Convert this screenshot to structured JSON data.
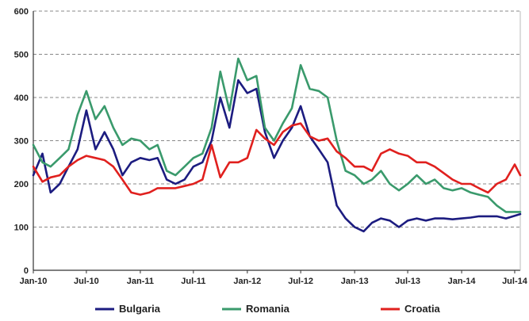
{
  "chart_data": {
    "type": "line",
    "title": "",
    "xlabel": "",
    "ylabel": "",
    "ylim": [
      0,
      600
    ],
    "yticks": [
      0,
      100,
      200,
      300,
      400,
      500,
      600
    ],
    "xlim": [
      "2010-01-01",
      "2014-07-20"
    ],
    "xticks": [
      {
        "date": "2010-01-01",
        "label": "Jan-10"
      },
      {
        "date": "2010-07-01",
        "label": "Jul-10"
      },
      {
        "date": "2011-01-01",
        "label": "Jan-11"
      },
      {
        "date": "2011-07-01",
        "label": "Jul-11"
      },
      {
        "date": "2012-01-01",
        "label": "Jan-12"
      },
      {
        "date": "2012-07-01",
        "label": "Jul-12"
      },
      {
        "date": "2013-01-01",
        "label": "Jan-13"
      },
      {
        "date": "2013-07-01",
        "label": "Jul-13"
      },
      {
        "date": "2014-01-01",
        "label": "Jan-14"
      },
      {
        "date": "2014-07-01",
        "label": "Jul-14"
      }
    ],
    "grid": "horizontal dashed",
    "legend_position": "bottom",
    "series": [
      {
        "name": "Bulgaria",
        "color": "#1c1c80",
        "points": [
          [
            "2010-01-01",
            220
          ],
          [
            "2010-02-01",
            270
          ],
          [
            "2010-03-01",
            180
          ],
          [
            "2010-04-01",
            200
          ],
          [
            "2010-05-01",
            240
          ],
          [
            "2010-06-01",
            280
          ],
          [
            "2010-07-01",
            370
          ],
          [
            "2010-08-01",
            280
          ],
          [
            "2010-09-01",
            320
          ],
          [
            "2010-10-01",
            280
          ],
          [
            "2010-11-01",
            220
          ],
          [
            "2010-12-01",
            250
          ],
          [
            "2011-01-01",
            260
          ],
          [
            "2011-02-01",
            255
          ],
          [
            "2011-03-01",
            260
          ],
          [
            "2011-04-01",
            210
          ],
          [
            "2011-05-01",
            200
          ],
          [
            "2011-06-01",
            210
          ],
          [
            "2011-07-01",
            240
          ],
          [
            "2011-08-01",
            250
          ],
          [
            "2011-09-01",
            300
          ],
          [
            "2011-10-01",
            400
          ],
          [
            "2011-11-01",
            330
          ],
          [
            "2011-12-01",
            440
          ],
          [
            "2012-01-01",
            410
          ],
          [
            "2012-02-01",
            420
          ],
          [
            "2012-03-01",
            320
          ],
          [
            "2012-04-01",
            260
          ],
          [
            "2012-05-01",
            300
          ],
          [
            "2012-06-01",
            330
          ],
          [
            "2012-07-01",
            380
          ],
          [
            "2012-08-01",
            310
          ],
          [
            "2012-09-01",
            280
          ],
          [
            "2012-10-01",
            250
          ],
          [
            "2012-11-01",
            150
          ],
          [
            "2012-12-01",
            120
          ],
          [
            "2013-01-01",
            100
          ],
          [
            "2013-02-01",
            90
          ],
          [
            "2013-03-01",
            110
          ],
          [
            "2013-04-01",
            120
          ],
          [
            "2013-05-01",
            115
          ],
          [
            "2013-06-01",
            100
          ],
          [
            "2013-07-01",
            115
          ],
          [
            "2013-08-01",
            120
          ],
          [
            "2013-09-01",
            115
          ],
          [
            "2013-10-01",
            120
          ],
          [
            "2013-11-01",
            120
          ],
          [
            "2013-12-01",
            118
          ],
          [
            "2014-01-01",
            120
          ],
          [
            "2014-02-01",
            122
          ],
          [
            "2014-03-01",
            125
          ],
          [
            "2014-04-01",
            125
          ],
          [
            "2014-05-01",
            125
          ],
          [
            "2014-06-01",
            120
          ],
          [
            "2014-07-20",
            130
          ]
        ]
      },
      {
        "name": "Romania",
        "color": "#3a9a6c",
        "points": [
          [
            "2010-01-01",
            290
          ],
          [
            "2010-02-01",
            250
          ],
          [
            "2010-03-01",
            240
          ],
          [
            "2010-04-01",
            260
          ],
          [
            "2010-05-01",
            280
          ],
          [
            "2010-06-01",
            360
          ],
          [
            "2010-07-01",
            415
          ],
          [
            "2010-08-01",
            350
          ],
          [
            "2010-09-01",
            380
          ],
          [
            "2010-10-01",
            330
          ],
          [
            "2010-11-01",
            290
          ],
          [
            "2010-12-01",
            305
          ],
          [
            "2011-01-01",
            300
          ],
          [
            "2011-02-01",
            280
          ],
          [
            "2011-03-01",
            290
          ],
          [
            "2011-04-01",
            230
          ],
          [
            "2011-05-01",
            220
          ],
          [
            "2011-06-01",
            240
          ],
          [
            "2011-07-01",
            260
          ],
          [
            "2011-08-01",
            270
          ],
          [
            "2011-09-01",
            330
          ],
          [
            "2011-10-01",
            460
          ],
          [
            "2011-11-01",
            370
          ],
          [
            "2011-12-01",
            490
          ],
          [
            "2012-01-01",
            440
          ],
          [
            "2012-02-01",
            450
          ],
          [
            "2012-03-01",
            330
          ],
          [
            "2012-04-01",
            300
          ],
          [
            "2012-05-01",
            340
          ],
          [
            "2012-06-01",
            375
          ],
          [
            "2012-07-01",
            475
          ],
          [
            "2012-08-01",
            420
          ],
          [
            "2012-09-01",
            415
          ],
          [
            "2012-10-01",
            400
          ],
          [
            "2012-11-01",
            300
          ],
          [
            "2012-12-01",
            230
          ],
          [
            "2013-01-01",
            220
          ],
          [
            "2013-02-01",
            200
          ],
          [
            "2013-03-01",
            210
          ],
          [
            "2013-04-01",
            230
          ],
          [
            "2013-05-01",
            200
          ],
          [
            "2013-06-01",
            185
          ],
          [
            "2013-07-01",
            200
          ],
          [
            "2013-08-01",
            220
          ],
          [
            "2013-09-01",
            200
          ],
          [
            "2013-10-01",
            210
          ],
          [
            "2013-11-01",
            190
          ],
          [
            "2013-12-01",
            185
          ],
          [
            "2014-01-01",
            190
          ],
          [
            "2014-02-01",
            180
          ],
          [
            "2014-03-01",
            175
          ],
          [
            "2014-04-01",
            170
          ],
          [
            "2014-05-01",
            150
          ],
          [
            "2014-06-01",
            135
          ],
          [
            "2014-07-20",
            135
          ]
        ]
      },
      {
        "name": "Croatia",
        "color": "#e0201e",
        "points": [
          [
            "2010-01-01",
            240
          ],
          [
            "2010-02-01",
            205
          ],
          [
            "2010-03-01",
            215
          ],
          [
            "2010-04-01",
            220
          ],
          [
            "2010-05-01",
            240
          ],
          [
            "2010-06-01",
            255
          ],
          [
            "2010-07-01",
            265
          ],
          [
            "2010-08-01",
            260
          ],
          [
            "2010-09-01",
            255
          ],
          [
            "2010-10-01",
            240
          ],
          [
            "2010-11-01",
            210
          ],
          [
            "2010-12-01",
            180
          ],
          [
            "2011-01-01",
            175
          ],
          [
            "2011-02-01",
            180
          ],
          [
            "2011-03-01",
            190
          ],
          [
            "2011-04-01",
            190
          ],
          [
            "2011-05-01",
            190
          ],
          [
            "2011-06-01",
            195
          ],
          [
            "2011-07-01",
            200
          ],
          [
            "2011-08-01",
            210
          ],
          [
            "2011-09-01",
            290
          ],
          [
            "2011-10-01",
            215
          ],
          [
            "2011-11-01",
            250
          ],
          [
            "2011-12-01",
            250
          ],
          [
            "2012-01-01",
            260
          ],
          [
            "2012-02-01",
            325
          ],
          [
            "2012-03-01",
            305
          ],
          [
            "2012-04-01",
            290
          ],
          [
            "2012-05-01",
            320
          ],
          [
            "2012-06-01",
            335
          ],
          [
            "2012-07-01",
            340
          ],
          [
            "2012-08-01",
            310
          ],
          [
            "2012-09-01",
            300
          ],
          [
            "2012-10-01",
            305
          ],
          [
            "2012-11-01",
            275
          ],
          [
            "2012-12-01",
            260
          ],
          [
            "2013-01-01",
            240
          ],
          [
            "2013-02-01",
            240
          ],
          [
            "2013-03-01",
            230
          ],
          [
            "2013-04-01",
            270
          ],
          [
            "2013-05-01",
            280
          ],
          [
            "2013-06-01",
            270
          ],
          [
            "2013-07-01",
            265
          ],
          [
            "2013-08-01",
            250
          ],
          [
            "2013-09-01",
            250
          ],
          [
            "2013-10-01",
            240
          ],
          [
            "2013-11-01",
            225
          ],
          [
            "2013-12-01",
            210
          ],
          [
            "2014-01-01",
            200
          ],
          [
            "2014-02-01",
            200
          ],
          [
            "2014-03-01",
            190
          ],
          [
            "2014-04-01",
            180
          ],
          [
            "2014-05-01",
            200
          ],
          [
            "2014-06-01",
            210
          ],
          [
            "2014-07-01",
            245
          ],
          [
            "2014-07-20",
            220
          ]
        ]
      }
    ]
  }
}
